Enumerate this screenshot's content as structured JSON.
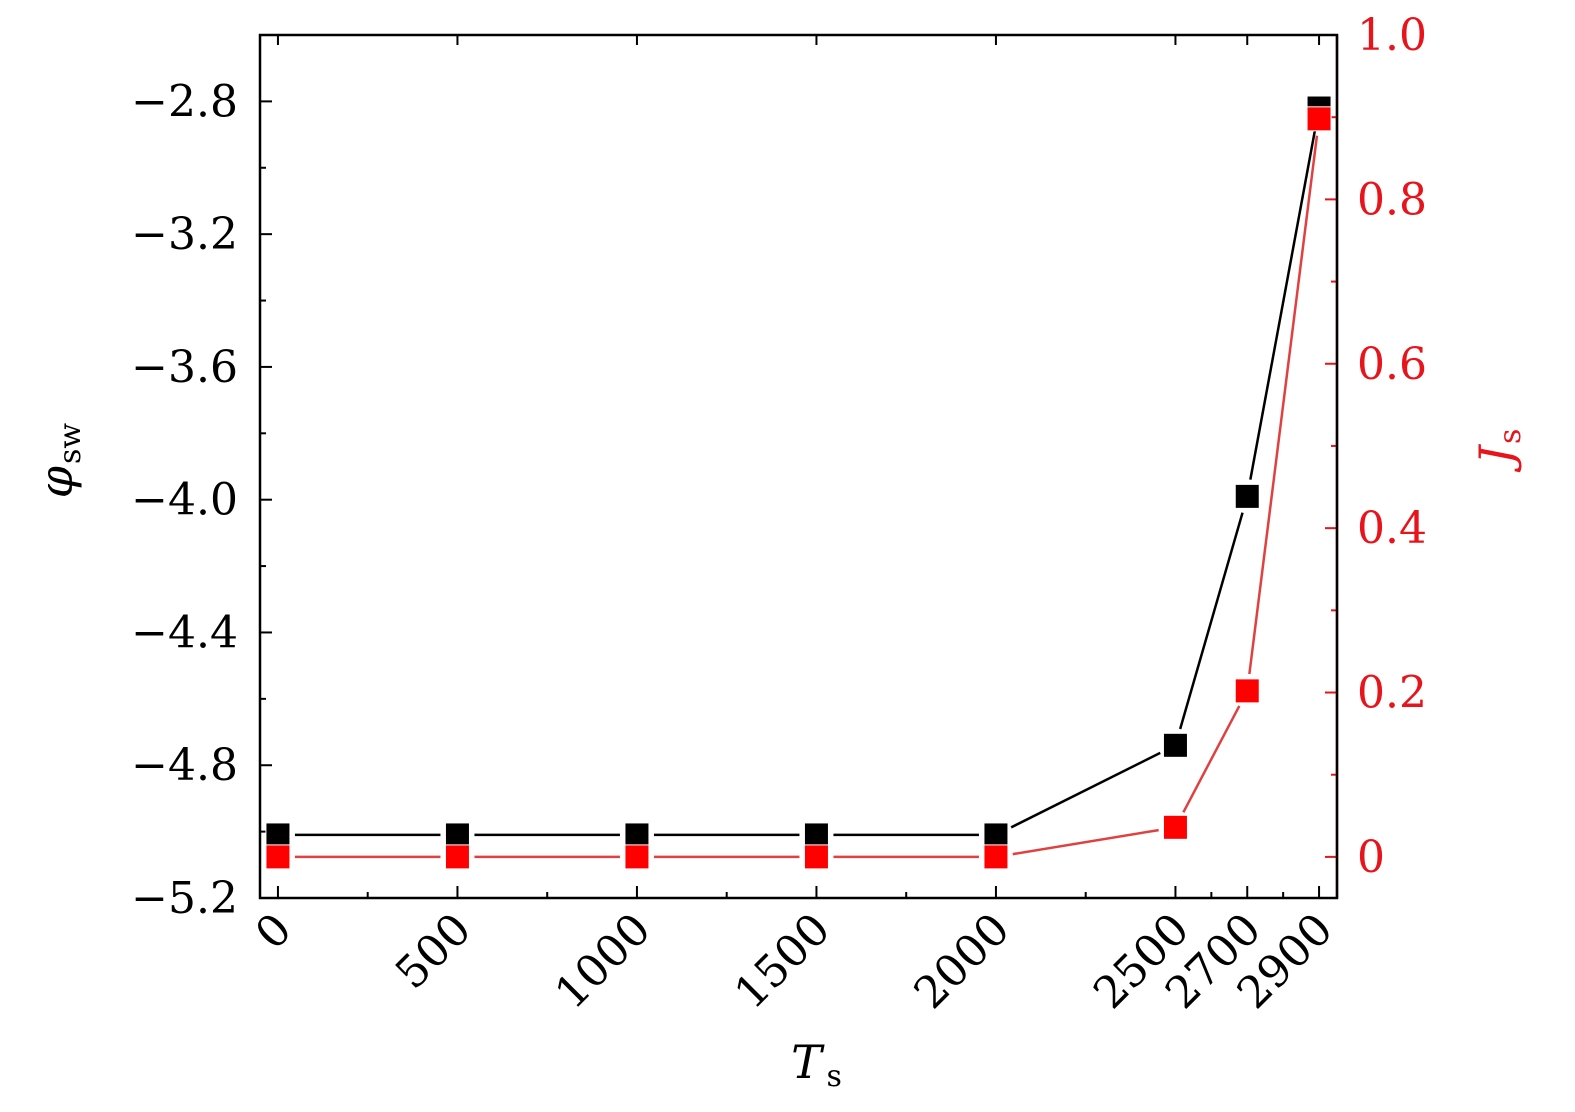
{
  "chart_data": {
    "type": "line",
    "x": [
      0,
      500,
      1000,
      1500,
      2000,
      2500,
      2700,
      2900
    ],
    "xtick_labels": [
      "0",
      "500",
      "1000",
      "1500",
      "2000",
      "2500",
      "2700",
      "2900"
    ],
    "xlim": [
      -50,
      2950
    ],
    "xlabel": {
      "main": "T",
      "sub": "s"
    },
    "left_axis": {
      "label": {
        "main": "φ",
        "sub": "sw"
      },
      "ylim": [
        -5.2,
        -2.6
      ],
      "ticks": [
        -5.2,
        -4.8,
        -4.4,
        -4.0,
        -3.6,
        -3.2,
        -2.8
      ],
      "tick_labels": [
        "−5.2",
        "−4.8",
        "−4.4",
        "−4.0",
        "−3.6",
        "−3.2",
        "−2.8"
      ],
      "color": "#000000"
    },
    "right_axis": {
      "label": {
        "main": "J",
        "sub": "s"
      },
      "ylim": [
        -0.05,
        1.0
      ],
      "ticks": [
        0,
        0.2,
        0.4,
        0.6,
        0.8,
        1.0
      ],
      "tick_labels": [
        "0",
        "0.2",
        "0.4",
        "0.6",
        "0.8",
        "1.0"
      ],
      "color": "#e8141c"
    },
    "series": [
      {
        "axis": "left",
        "color": "#000000",
        "marker": "square",
        "values": [
          -5.01,
          -5.01,
          -5.01,
          -5.01,
          -5.01,
          -4.74,
          -3.99,
          -2.82
        ]
      },
      {
        "axis": "right",
        "color": "#ff0000",
        "line_color": "#e04040",
        "marker": "square",
        "values": [
          0.0,
          0.0,
          0.0,
          0.0,
          0.0,
          0.036,
          0.202,
          0.898
        ]
      }
    ],
    "grid": false
  }
}
